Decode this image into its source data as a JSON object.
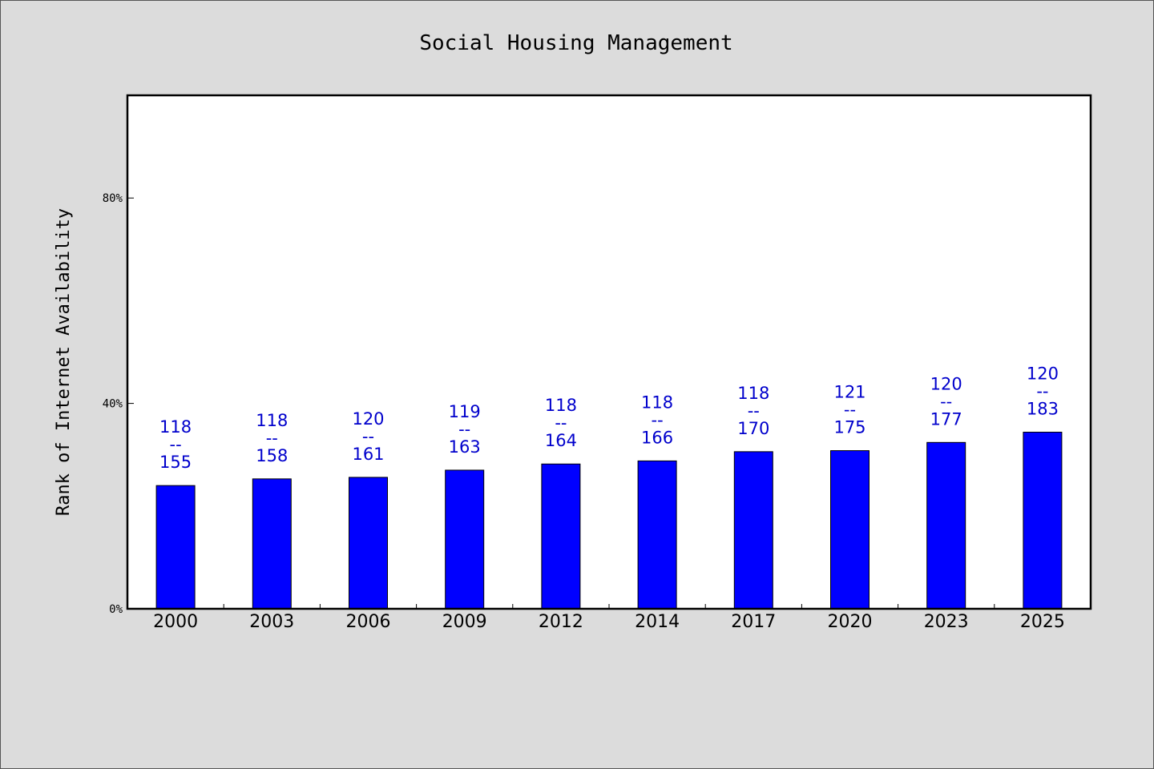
{
  "colors": {
    "background": "#dcdcdc",
    "plot_background": "#ffffff",
    "bar": "#0000ff",
    "label": "#0000cc",
    "frame": "#000000"
  },
  "chart_data": {
    "type": "bar",
    "title": "Social Housing Management",
    "xlabel": "",
    "ylabel": "Rank of Internet Availability",
    "ylim": [
      0,
      100
    ],
    "yticks": [
      0,
      40,
      80
    ],
    "ytick_labels": [
      "0%",
      "40%",
      "80%"
    ],
    "grid": false,
    "legend": "none",
    "categories": [
      "2000",
      "2003",
      "2006",
      "2009",
      "2012",
      "2014",
      "2017",
      "2020",
      "2023",
      "2025"
    ],
    "values": [
      24,
      25.3,
      25.6,
      27,
      28.2,
      28.8,
      30.6,
      30.8,
      32.4,
      34.4
    ],
    "labels": [
      {
        "top": "118",
        "sep": "--",
        "bottom": "155"
      },
      {
        "top": "118",
        "sep": "--",
        "bottom": "158"
      },
      {
        "top": "120",
        "sep": "--",
        "bottom": "161"
      },
      {
        "top": "119",
        "sep": "--",
        "bottom": "163"
      },
      {
        "top": "118",
        "sep": "--",
        "bottom": "164"
      },
      {
        "top": "118",
        "sep": "--",
        "bottom": "166"
      },
      {
        "top": "118",
        "sep": "--",
        "bottom": "170"
      },
      {
        "top": "121",
        "sep": "--",
        "bottom": "175"
      },
      {
        "top": "120",
        "sep": "--",
        "bottom": "177"
      },
      {
        "top": "120",
        "sep": "--",
        "bottom": "183"
      }
    ]
  }
}
